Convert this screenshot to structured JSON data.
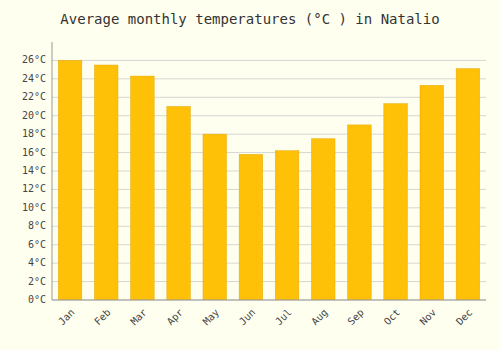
{
  "chart_data": {
    "type": "bar",
    "title": "Average monthly temperatures (°C ) in Natalio",
    "categories": [
      "Jan",
      "Feb",
      "Mar",
      "Apr",
      "May",
      "Jun",
      "Jul",
      "Aug",
      "Sep",
      "Oct",
      "Nov",
      "Dec"
    ],
    "values": [
      26.0,
      25.5,
      24.3,
      21.0,
      18.0,
      15.8,
      16.2,
      17.5,
      19.0,
      21.3,
      23.3,
      25.1
    ],
    "color": "#FFC107",
    "ylim": [
      0,
      28
    ],
    "yticks": [
      {
        "value": 0,
        "label": "0°C"
      },
      {
        "value": 2,
        "label": "2°C"
      },
      {
        "value": 4,
        "label": "4°C"
      },
      {
        "value": 6,
        "label": "6°C"
      },
      {
        "value": 8,
        "label": "8°C"
      },
      {
        "value": 10,
        "label": "10°C"
      },
      {
        "value": 12,
        "label": "12°C"
      },
      {
        "value": 14,
        "label": "14°C"
      },
      {
        "value": 16,
        "label": "16°C"
      },
      {
        "value": 18,
        "label": "18°C"
      },
      {
        "value": 20,
        "label": "20°C"
      },
      {
        "value": 22,
        "label": "22°C"
      },
      {
        "value": 24,
        "label": "24°C"
      },
      {
        "value": 26,
        "label": "26°C"
      }
    ],
    "grid": true
  }
}
